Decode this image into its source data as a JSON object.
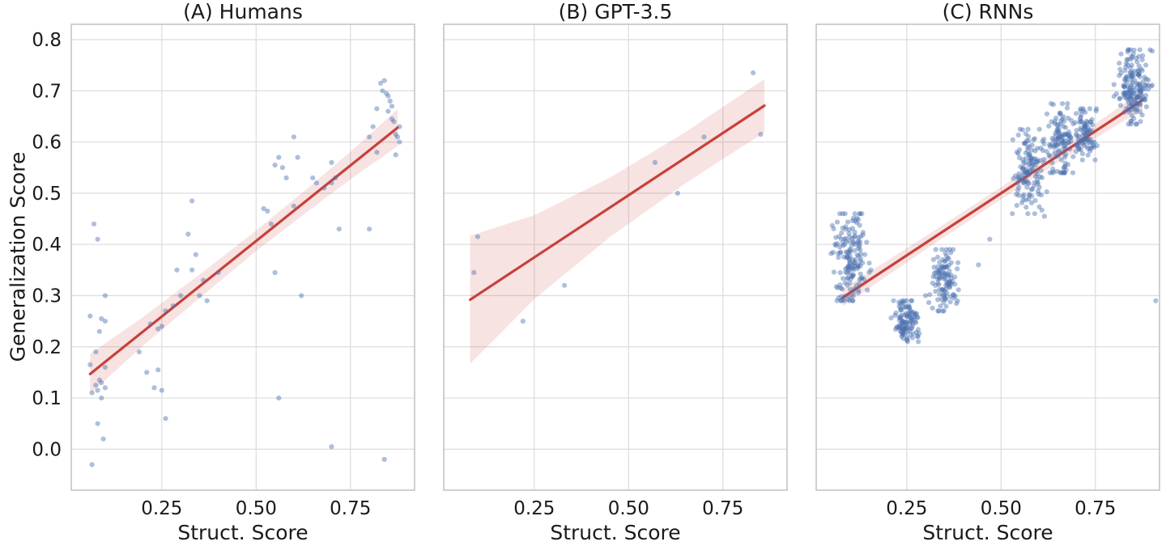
{
  "figure": {
    "ylabel": "Generalization Score",
    "xlabel": "Struct. Score",
    "colors": {
      "point": "#4c72b0",
      "line": "#c8403c",
      "band": "#c8403c",
      "grid": "#dcdcdc",
      "spine": "#c0c0c0",
      "text": "#1a1a1a"
    },
    "xlim": [
      0.01,
      0.92
    ],
    "ylim": [
      -0.08,
      0.83
    ],
    "x_ticks": [
      {
        "v": 0.25,
        "label": "0.25"
      },
      {
        "v": 0.5,
        "label": "0.50"
      },
      {
        "v": 0.75,
        "label": "0.75"
      }
    ],
    "y_ticks": [
      {
        "v": 0.0,
        "label": "0.0"
      },
      {
        "v": 0.1,
        "label": "0.1"
      },
      {
        "v": 0.2,
        "label": "0.2"
      },
      {
        "v": 0.3,
        "label": "0.3"
      },
      {
        "v": 0.4,
        "label": "0.4"
      },
      {
        "v": 0.5,
        "label": "0.5"
      },
      {
        "v": 0.6,
        "label": "0.6"
      },
      {
        "v": 0.7,
        "label": "0.7"
      },
      {
        "v": 0.8,
        "label": "0.8"
      }
    ]
  },
  "chart_data": [
    {
      "type": "scatter",
      "title": "(A) Humans",
      "xlabel": "Struct. Score",
      "ylabel": "Generalization Score",
      "xlim": [
        0.01,
        0.92
      ],
      "ylim": [
        -0.08,
        0.83
      ],
      "grid": true,
      "points": [
        [
          0.07,
          0.44
        ],
        [
          0.08,
          0.41
        ],
        [
          0.1,
          0.3
        ],
        [
          0.06,
          0.26
        ],
        [
          0.09,
          0.255
        ],
        [
          0.1,
          0.25
        ],
        [
          0.085,
          0.23
        ],
        [
          0.075,
          0.19
        ],
        [
          0.06,
          0.165
        ],
        [
          0.1,
          0.16
        ],
        [
          0.085,
          0.135
        ],
        [
          0.09,
          0.13
        ],
        [
          0.075,
          0.125
        ],
        [
          0.1,
          0.12
        ],
        [
          0.08,
          0.115
        ],
        [
          0.065,
          0.11
        ],
        [
          0.09,
          0.1
        ],
        [
          0.08,
          0.05
        ],
        [
          0.095,
          0.02
        ],
        [
          0.065,
          -0.03
        ],
        [
          0.19,
          0.19
        ],
        [
          0.22,
          0.245
        ],
        [
          0.24,
          0.235
        ],
        [
          0.25,
          0.24
        ],
        [
          0.26,
          0.27
        ],
        [
          0.21,
          0.15
        ],
        [
          0.23,
          0.12
        ],
        [
          0.25,
          0.115
        ],
        [
          0.24,
          0.155
        ],
        [
          0.26,
          0.06
        ],
        [
          0.28,
          0.28
        ],
        [
          0.3,
          0.3
        ],
        [
          0.29,
          0.35
        ],
        [
          0.33,
          0.485
        ],
        [
          0.32,
          0.42
        ],
        [
          0.34,
          0.38
        ],
        [
          0.33,
          0.35
        ],
        [
          0.36,
          0.33
        ],
        [
          0.35,
          0.3
        ],
        [
          0.37,
          0.29
        ],
        [
          0.4,
          0.345
        ],
        [
          0.52,
          0.47
        ],
        [
          0.53,
          0.465
        ],
        [
          0.54,
          0.44
        ],
        [
          0.55,
          0.555
        ],
        [
          0.56,
          0.57
        ],
        [
          0.57,
          0.55
        ],
        [
          0.58,
          0.53
        ],
        [
          0.55,
          0.345
        ],
        [
          0.56,
          0.1
        ],
        [
          0.6,
          0.61
        ],
        [
          0.61,
          0.57
        ],
        [
          0.6,
          0.475
        ],
        [
          0.62,
          0.3
        ],
        [
          0.65,
          0.53
        ],
        [
          0.66,
          0.52
        ],
        [
          0.68,
          0.51
        ],
        [
          0.7,
          0.56
        ],
        [
          0.71,
          0.53
        ],
        [
          0.7,
          0.52
        ],
        [
          0.72,
          0.43
        ],
        [
          0.7,
          0.005
        ],
        [
          0.8,
          0.61
        ],
        [
          0.81,
          0.63
        ],
        [
          0.82,
          0.665
        ],
        [
          0.82,
          0.58
        ],
        [
          0.83,
          0.715
        ],
        [
          0.835,
          0.7
        ],
        [
          0.84,
          0.72
        ],
        [
          0.845,
          0.695
        ],
        [
          0.85,
          0.69
        ],
        [
          0.85,
          0.66
        ],
        [
          0.855,
          0.68
        ],
        [
          0.86,
          0.67
        ],
        [
          0.86,
          0.645
        ],
        [
          0.865,
          0.64
        ],
        [
          0.87,
          0.615
        ],
        [
          0.875,
          0.61
        ],
        [
          0.88,
          0.6
        ],
        [
          0.87,
          0.575
        ],
        [
          0.8,
          0.43
        ],
        [
          0.84,
          -0.02
        ],
        [
          0.88,
          0.63
        ]
      ],
      "regression": {
        "x0": 0.06,
        "y0": 0.147,
        "x1": 0.875,
        "y1": 0.628,
        "band": [
          [
            0.06,
            0.108,
            0.186
          ],
          [
            0.2,
            0.202,
            0.258
          ],
          [
            0.35,
            0.295,
            0.341
          ],
          [
            0.5,
            0.387,
            0.427
          ],
          [
            0.65,
            0.472,
            0.518
          ],
          [
            0.75,
            0.527,
            0.581
          ],
          [
            0.875,
            0.592,
            0.664
          ]
        ]
      }
    },
    {
      "type": "scatter",
      "title": "(B) GPT-3.5",
      "xlabel": "Struct. Score",
      "ylabel": "",
      "xlim": [
        0.01,
        0.92
      ],
      "ylim": [
        -0.08,
        0.83
      ],
      "grid": true,
      "points": [
        [
          0.09,
          0.345
        ],
        [
          0.1,
          0.415
        ],
        [
          0.22,
          0.25
        ],
        [
          0.33,
          0.32
        ],
        [
          0.57,
          0.56
        ],
        [
          0.63,
          0.5
        ],
        [
          0.7,
          0.61
        ],
        [
          0.83,
          0.735
        ],
        [
          0.85,
          0.615
        ]
      ],
      "regression": {
        "x0": 0.08,
        "y0": 0.292,
        "x1": 0.86,
        "y1": 0.671,
        "band": [
          [
            0.08,
            0.167,
            0.417
          ],
          [
            0.25,
            0.293,
            0.457
          ],
          [
            0.45,
            0.414,
            0.53
          ],
          [
            0.65,
            0.519,
            0.619
          ],
          [
            0.86,
            0.619,
            0.723
          ]
        ]
      }
    },
    {
      "type": "scatter",
      "title": "(C) RNNs",
      "xlabel": "Struct. Score",
      "ylabel": "",
      "xlim": [
        0.01,
        0.92
      ],
      "ylim": [
        -0.08,
        0.83
      ],
      "grid": true,
      "points": [
        [
          0.91,
          0.29
        ],
        [
          0.615,
          0.455
        ],
        [
          0.47,
          0.41
        ],
        [
          0.53,
          0.46
        ],
        [
          0.3,
          0.3
        ],
        [
          0.155,
          0.35
        ],
        [
          0.44,
          0.36
        ]
      ],
      "clusters": [
        {
          "x": 0.1,
          "x_spread": 0.022,
          "y_min": 0.29,
          "y_max": 0.46,
          "count": 160
        },
        {
          "x": 0.25,
          "x_spread": 0.018,
          "y_min": 0.21,
          "y_max": 0.29,
          "count": 110
        },
        {
          "x": 0.35,
          "x_spread": 0.018,
          "y_min": 0.27,
          "y_max": 0.39,
          "count": 110
        },
        {
          "x": 0.575,
          "x_spread": 0.02,
          "y_min": 0.46,
          "y_max": 0.625,
          "count": 130
        },
        {
          "x": 0.655,
          "x_spread": 0.018,
          "y_min": 0.54,
          "y_max": 0.675,
          "count": 110
        },
        {
          "x": 0.72,
          "x_spread": 0.015,
          "y_min": 0.565,
          "y_max": 0.665,
          "count": 90
        },
        {
          "x": 0.85,
          "x_spread": 0.022,
          "y_min": 0.635,
          "y_max": 0.78,
          "count": 170
        }
      ],
      "regression": {
        "x0": 0.08,
        "y0": 0.296,
        "x1": 0.875,
        "y1": 0.682,
        "band": [
          [
            0.08,
            0.279,
            0.313
          ],
          [
            0.3,
            0.39,
            0.416
          ],
          [
            0.5,
            0.488,
            0.512
          ],
          [
            0.7,
            0.584,
            0.61
          ],
          [
            0.875,
            0.664,
            0.7
          ]
        ]
      }
    }
  ]
}
